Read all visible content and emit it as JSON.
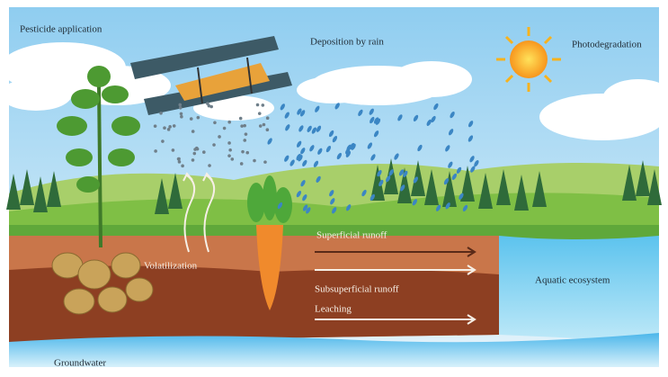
{
  "labels": {
    "pesticide_application": "Pesticide application",
    "deposition_by_rain": "Deposition by rain",
    "photodegradation": "Photodegradation",
    "volatilization": "Volatilization",
    "superficial_runoff": "Superficial runoff",
    "subsuperficial_runoff": "Subsuperficial runoff",
    "leaching": "Leaching",
    "aquatic_ecosystem": "Aquatic ecosystem",
    "groundwater": "Groundwater"
  }
}
